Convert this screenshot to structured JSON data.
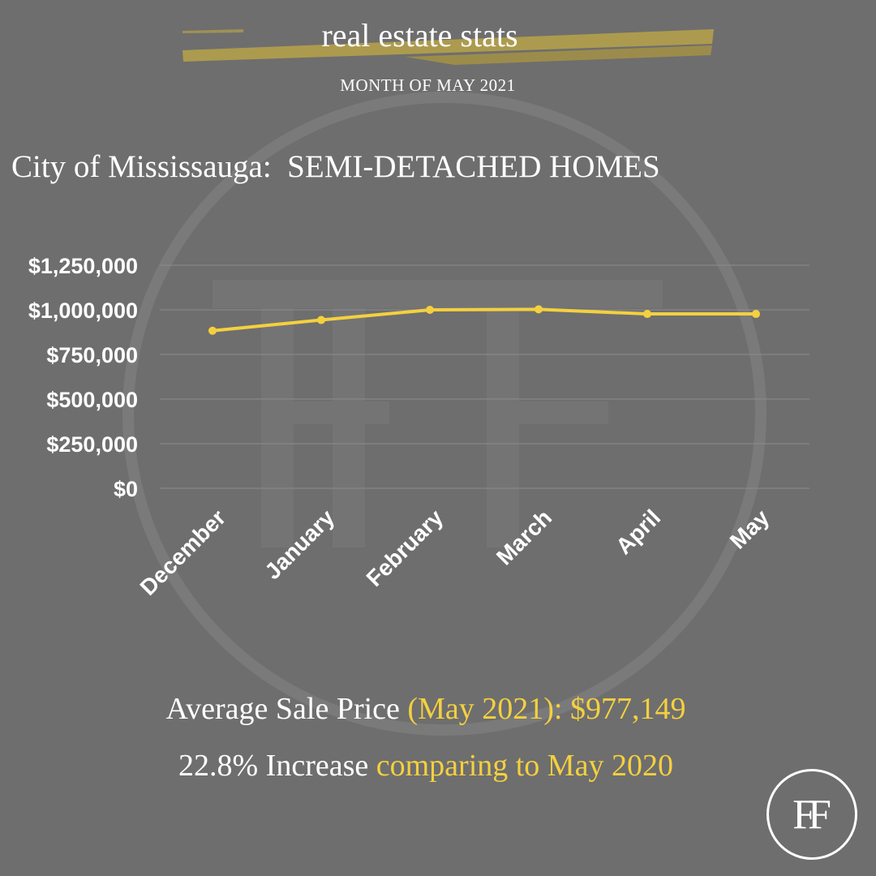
{
  "header": {
    "title": "real estate stats",
    "subtitle": "MONTH OF MAY 2021"
  },
  "logo": {
    "text": "FF"
  },
  "colors": {
    "background": "#6e6e6e",
    "accent": "#f4d03f",
    "brush": "#b3a04a",
    "gridline": "#8c8c8c",
    "text": "#ffffff"
  },
  "chart_data": {
    "type": "line",
    "title": "City of Mississauga:  SEMI-DETACHED HOMES",
    "categories": [
      "December",
      "January",
      "February",
      "March",
      "April",
      "May"
    ],
    "series": [
      {
        "values": [
          883000,
          943000,
          1000000,
          1003000,
          977000,
          977149
        ]
      }
    ],
    "yticks": [
      "$0",
      "$250,000",
      "$500,000",
      "$750,000",
      "$1,000,000",
      "$1,250,000"
    ],
    "ylim": [
      0,
      1250000
    ],
    "grid": true,
    "xlabel": "",
    "ylabel": ""
  },
  "footer": {
    "line1_prefix": "Average Sale Price ",
    "line1_highlight": "(May 2021): $977,149",
    "line2_prefix": "22.8% Increase ",
    "line2_highlight": "comparing to May 2020"
  }
}
